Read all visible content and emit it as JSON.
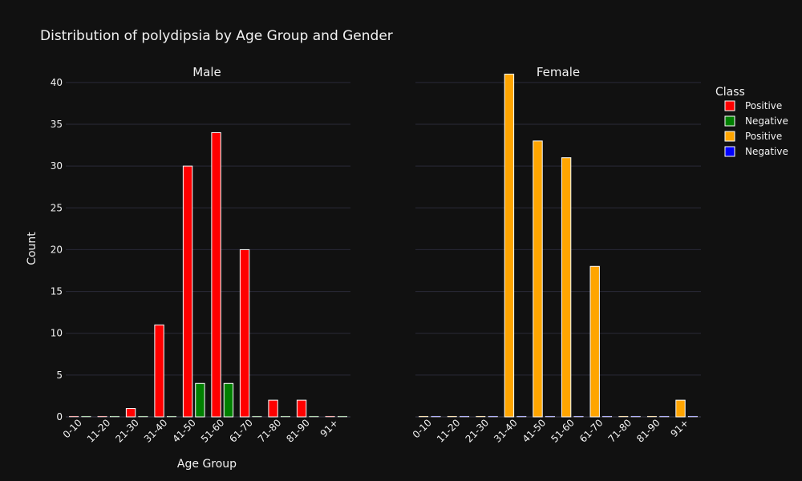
{
  "chart_data": {
    "type": "bar",
    "title": "Distribution of polydipsia by Age Group and Gender",
    "xlabel": "Age Group",
    "ylabel": "Count",
    "ylim": [
      0,
      42
    ],
    "yticks": [
      0,
      5,
      10,
      15,
      20,
      25,
      30,
      35,
      40
    ],
    "categories": [
      "0-10",
      "11-20",
      "21-30",
      "31-40",
      "41-50",
      "51-60",
      "61-70",
      "71-80",
      "81-90",
      "91+"
    ],
    "legend": {
      "title": "Class",
      "placement": "top-right",
      "entries": [
        {
          "name": "Positive",
          "color": "#ff0000"
        },
        {
          "name": "Negative",
          "color": "#008000"
        },
        {
          "name": "Positive",
          "color": "#ffa500"
        },
        {
          "name": "Negative",
          "color": "#0000ff"
        }
      ]
    },
    "panels": [
      {
        "title": "Male",
        "series": [
          {
            "name": "Positive",
            "color": "#ff0000",
            "values": [
              0,
              0,
              1,
              11,
              30,
              34,
              20,
              2,
              2,
              0
            ]
          },
          {
            "name": "Negative",
            "color": "#008000",
            "values": [
              0,
              0,
              0,
              0,
              4,
              4,
              0,
              0,
              0,
              0
            ]
          }
        ]
      },
      {
        "title": "Female",
        "series": [
          {
            "name": "Positive",
            "color": "#ffa500",
            "values": [
              0,
              0,
              0,
              41,
              33,
              31,
              18,
              0,
              0,
              2
            ]
          },
          {
            "name": "Negative",
            "color": "#0000ff",
            "values": [
              0,
              0,
              0,
              0,
              0,
              0,
              0,
              0,
              0,
              0
            ]
          }
        ]
      }
    ]
  }
}
